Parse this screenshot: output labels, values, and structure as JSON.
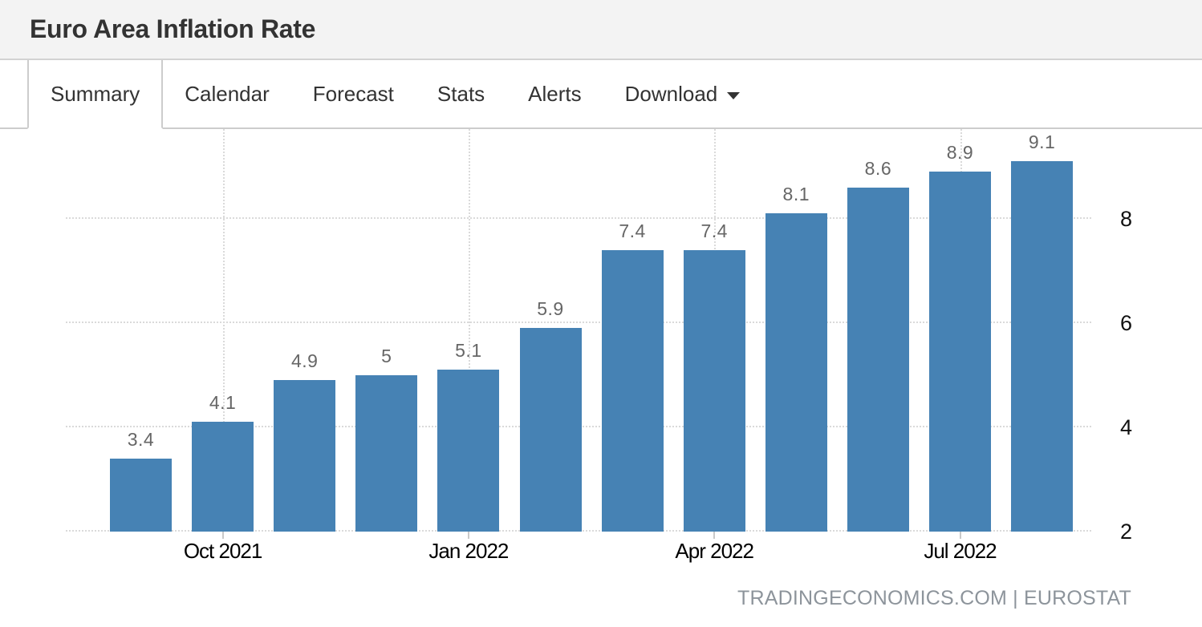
{
  "header": {
    "title": "Euro Area Inflation Rate"
  },
  "tabs": {
    "items": [
      {
        "label": "Summary",
        "active": true,
        "has_caret": false
      },
      {
        "label": "Calendar",
        "active": false,
        "has_caret": false
      },
      {
        "label": "Forecast",
        "active": false,
        "has_caret": false
      },
      {
        "label": "Stats",
        "active": false,
        "has_caret": false
      },
      {
        "label": "Alerts",
        "active": false,
        "has_caret": false
      },
      {
        "label": "Download",
        "active": false,
        "has_caret": true
      }
    ]
  },
  "chart_data": {
    "type": "bar",
    "title": "Euro Area Inflation Rate",
    "values": [
      3.4,
      4.1,
      4.9,
      5,
      5.1,
      5.9,
      7.4,
      7.4,
      8.1,
      8.6,
      8.9,
      9.1
    ],
    "data_labels": [
      "3.4",
      "4.1",
      "4.9",
      "5",
      "5.1",
      "5.9",
      "7.4",
      "7.4",
      "8.1",
      "8.6",
      "8.9",
      "9.1"
    ],
    "x_axis_ticks": [
      {
        "label": "Oct 2021",
        "bar_index": 1
      },
      {
        "label": "Jan 2022",
        "bar_index": 4
      },
      {
        "label": "Apr 2022",
        "bar_index": 7
      },
      {
        "label": "Jul 2022",
        "bar_index": 10
      }
    ],
    "y_axis_ticks": [
      2,
      4,
      6,
      8
    ],
    "ylim": [
      2,
      9.72
    ],
    "y_axis_side": "right",
    "grid": "dotted",
    "legend": "none",
    "bar_color": "#4682b4",
    "attribution": "TRADINGECONOMICS.COM | EUROSTAT"
  },
  "colors": {
    "bar": "#4682b4",
    "data_label": "#666666",
    "axis_label": "#000000",
    "attribution_text": "#8d949b",
    "header_bg": "#f3f3f3",
    "border": "#cccccc",
    "gridline": "#dadada"
  }
}
